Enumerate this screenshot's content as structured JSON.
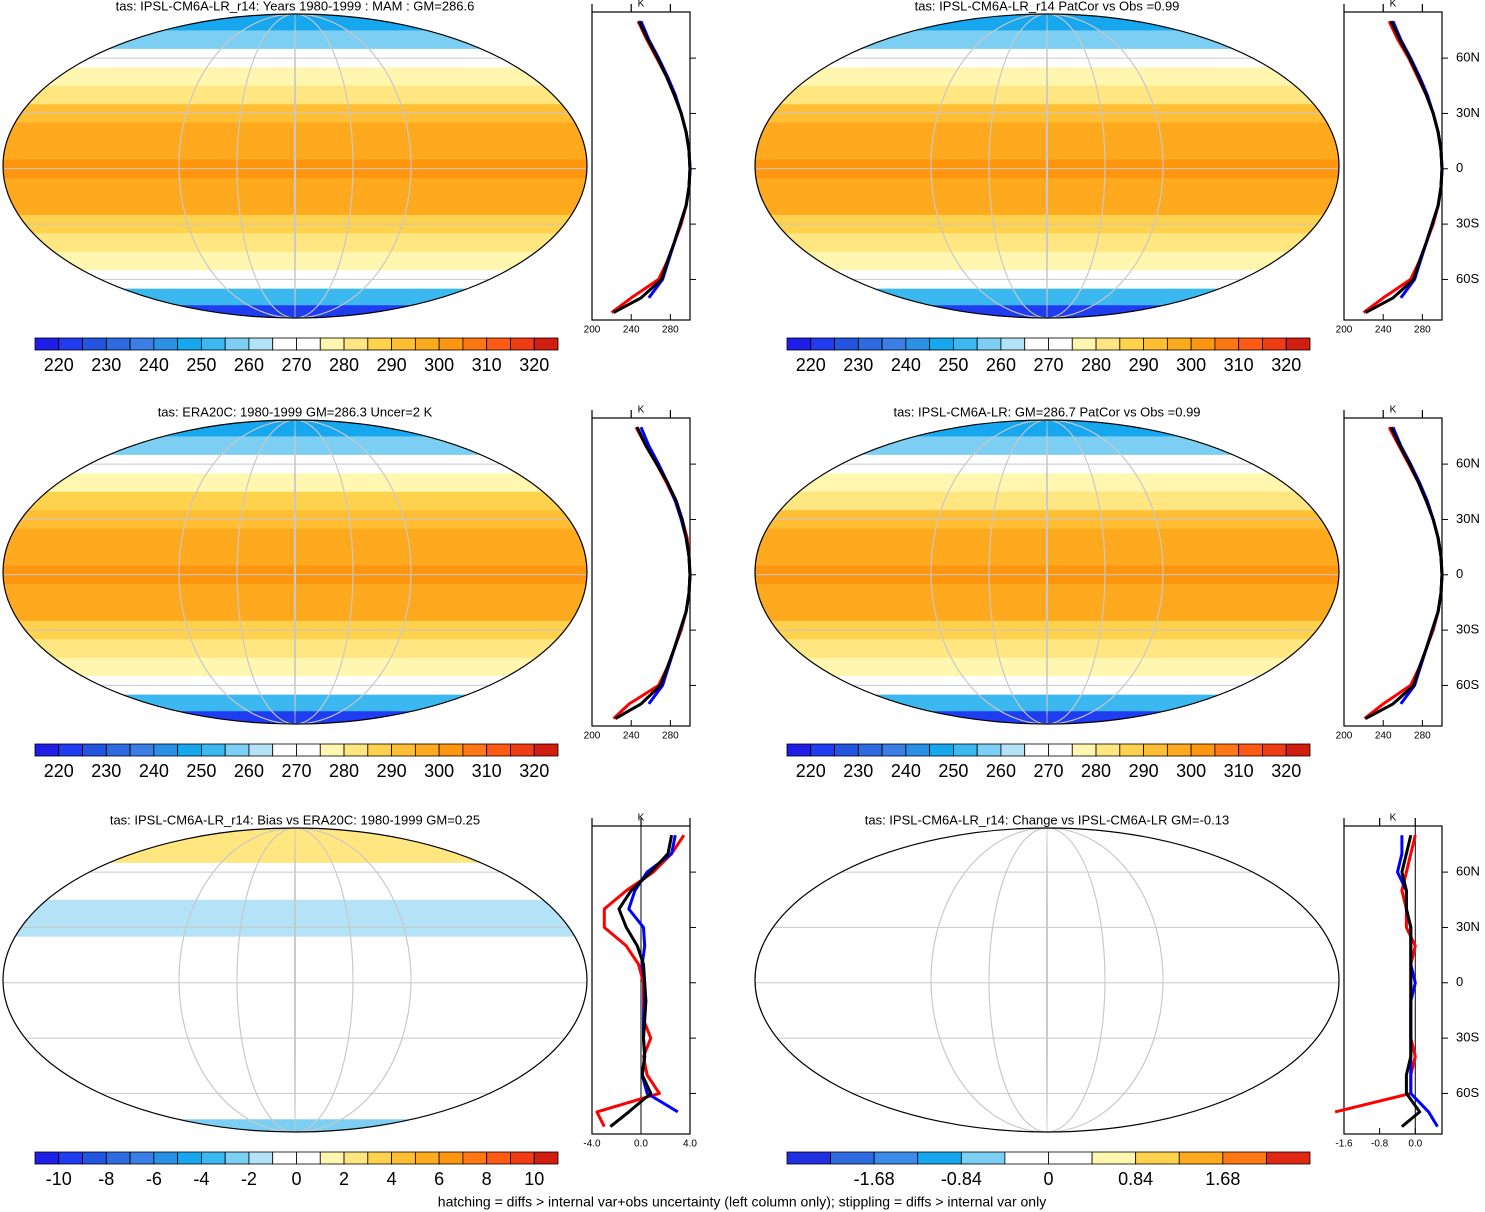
{
  "footnote": "hatching = diffs > internal var+obs uncertainty (left column only); stippling = diffs > internal var only",
  "chart_data": [
    {
      "type": "map",
      "title": "tas: IPSL-CM6A-LR_r14: Years 1980-1999 : MAM : GM=286.6",
      "colorbar": {
        "lim": [
          215,
          325
        ],
        "ticks": [
          220,
          230,
          240,
          250,
          260,
          270,
          280,
          290,
          300,
          310,
          320
        ],
        "colors": [
          "#1e1ee6",
          "#1f3cf0",
          "#2255e0",
          "#2e6ae0",
          "#3a7ee6",
          "#2a90e6",
          "#17a7ef",
          "#3bb8f0",
          "#7ccff2",
          "#b4e2f6",
          "#ffffff",
          "#ffffff",
          "#fff6b0",
          "#ffe680",
          "#ffd24d",
          "#ffbe33",
          "#ffaa1e",
          "#ff9610",
          "#ff7814",
          "#ff5a14",
          "#f03c14",
          "#d21e0f"
        ]
      }
    },
    {
      "type": "line",
      "xlabel": "K",
      "xlim": [
        200,
        300
      ],
      "xticks": [
        200,
        240,
        280
      ],
      "ylim": [
        -82,
        85
      ],
      "yticks": [
        -60,
        -30,
        0,
        30,
        60
      ],
      "ytick_labels": false,
      "zero_line": false,
      "y": [
        80,
        70,
        60,
        50,
        40,
        30,
        20,
        10,
        0,
        -10,
        -20,
        -30,
        -40,
        -50,
        -60,
        -70,
        -78
      ],
      "series": [
        {
          "color": "#ff0000",
          "values": [
            247,
            256,
            266,
            276,
            284,
            291,
            296,
            299,
            300,
            299,
            296,
            291,
            284,
            277,
            268,
            240,
            220
          ]
        },
        {
          "color": "#0000ff",
          "values": [
            250,
            258,
            268,
            277,
            285,
            291,
            296,
            299,
            300,
            299,
            296,
            290,
            284,
            278,
            272,
            258,
            null
          ]
        },
        {
          "color": "#000000",
          "values": [
            248,
            257,
            267,
            276,
            284,
            291,
            296,
            299,
            300,
            299,
            296,
            290,
            284,
            277,
            271,
            250,
            222
          ]
        }
      ]
    },
    {
      "type": "map",
      "title": "tas: IPSL-CM6A-LR_r14 PatCor vs Obs =0.99",
      "colorbar": {
        "lim": [
          215,
          325
        ],
        "ticks": [
          220,
          230,
          240,
          250,
          260,
          270,
          280,
          290,
          300,
          310,
          320
        ],
        "colors": [
          "#1e1ee6",
          "#1f3cf0",
          "#2255e0",
          "#2e6ae0",
          "#3a7ee6",
          "#2a90e6",
          "#17a7ef",
          "#3bb8f0",
          "#7ccff2",
          "#b4e2f6",
          "#ffffff",
          "#ffffff",
          "#fff6b0",
          "#ffe680",
          "#ffd24d",
          "#ffbe33",
          "#ffaa1e",
          "#ff9610",
          "#ff7814",
          "#ff5a14",
          "#f03c14",
          "#d21e0f"
        ]
      }
    },
    {
      "type": "line",
      "xlabel": "K",
      "xlim": [
        200,
        300
      ],
      "xticks": [
        200,
        240,
        280
      ],
      "ylim": [
        -82,
        85
      ],
      "yticks": [
        {
          "value": -60,
          "label": "60S"
        },
        {
          "value": -30,
          "label": "30S"
        },
        0,
        {
          "value": 30,
          "label": "30N"
        },
        {
          "value": 60,
          "label": "60N"
        }
      ],
      "ytick_labels": true,
      "zero_line": false,
      "y": [
        80,
        70,
        60,
        50,
        40,
        30,
        20,
        10,
        0,
        -10,
        -20,
        -30,
        -40,
        -50,
        -60,
        -70,
        -78
      ],
      "series": [
        {
          "color": "#ff0000",
          "values": [
            246,
            255,
            266,
            275,
            284,
            291,
            296,
            299,
            300,
            299,
            296,
            291,
            284,
            277,
            268,
            240,
            220
          ]
        },
        {
          "color": "#0000ff",
          "values": [
            250,
            258,
            268,
            277,
            285,
            291,
            296,
            299,
            300,
            299,
            296,
            290,
            284,
            278,
            272,
            258,
            null
          ]
        },
        {
          "color": "#000000",
          "values": [
            248,
            257,
            267,
            276,
            284,
            291,
            296,
            299,
            300,
            299,
            296,
            290,
            284,
            277,
            271,
            250,
            222
          ]
        }
      ]
    },
    {
      "type": "map",
      "title": "tas: ERA20C: 1980-1999 GM=286.3 Uncer=2 K",
      "colorbar": {
        "lim": [
          215,
          325
        ],
        "ticks": [
          220,
          230,
          240,
          250,
          260,
          270,
          280,
          290,
          300,
          310,
          320
        ],
        "colors": [
          "#1e1ee6",
          "#1f3cf0",
          "#2255e0",
          "#2e6ae0",
          "#3a7ee6",
          "#2a90e6",
          "#17a7ef",
          "#3bb8f0",
          "#7ccff2",
          "#b4e2f6",
          "#ffffff",
          "#ffffff",
          "#fff6b0",
          "#ffe680",
          "#ffd24d",
          "#ffbe33",
          "#ffaa1e",
          "#ff9610",
          "#ff7814",
          "#ff5a14",
          "#f03c14",
          "#d21e0f"
        ]
      }
    },
    {
      "type": "line",
      "xlabel": "K",
      "xlim": [
        200,
        300
      ],
      "xticks": [
        200,
        240,
        280
      ],
      "ylim": [
        -82,
        85
      ],
      "yticks": [
        -60,
        -30,
        0,
        30,
        60
      ],
      "ytick_labels": false,
      "zero_line": false,
      "y": [
        80,
        70,
        60,
        50,
        40,
        30,
        20,
        10,
        0,
        -10,
        -20,
        -30,
        -40,
        -50,
        -60,
        -70,
        -78
      ],
      "series": [
        {
          "color": "#ff0000",
          "values": [
            245,
            255,
            266,
            276,
            285,
            292,
            297,
            299,
            300,
            299,
            296,
            291,
            284,
            277,
            268,
            238,
            222
          ]
        },
        {
          "color": "#0000ff",
          "values": [
            250,
            258,
            268,
            277,
            285,
            291,
            296,
            299,
            300,
            299,
            296,
            290,
            284,
            278,
            272,
            258,
            null
          ]
        },
        {
          "color": "#000000",
          "values": [
            246,
            255,
            266,
            277,
            286,
            292,
            296,
            299,
            300,
            299,
            296,
            290,
            284,
            277,
            270,
            250,
            224
          ]
        }
      ]
    },
    {
      "type": "map",
      "title": "tas: IPSL-CM6A-LR: GM=286.7 PatCor vs Obs =0.99",
      "colorbar": {
        "lim": [
          215,
          325
        ],
        "ticks": [
          220,
          230,
          240,
          250,
          260,
          270,
          280,
          290,
          300,
          310,
          320
        ],
        "colors": [
          "#1e1ee6",
          "#1f3cf0",
          "#2255e0",
          "#2e6ae0",
          "#3a7ee6",
          "#2a90e6",
          "#17a7ef",
          "#3bb8f0",
          "#7ccff2",
          "#b4e2f6",
          "#ffffff",
          "#ffffff",
          "#fff6b0",
          "#ffe680",
          "#ffd24d",
          "#ffbe33",
          "#ffaa1e",
          "#ff9610",
          "#ff7814",
          "#ff5a14",
          "#f03c14",
          "#d21e0f"
        ]
      }
    },
    {
      "type": "line",
      "xlabel": "K",
      "xlim": [
        200,
        300
      ],
      "xticks": [
        200,
        240,
        280
      ],
      "ylim": [
        -82,
        85
      ],
      "yticks": [
        {
          "value": -60,
          "label": "60S"
        },
        {
          "value": -30,
          "label": "30S"
        },
        0,
        {
          "value": 30,
          "label": "30N"
        },
        {
          "value": 60,
          "label": "60N"
        }
      ],
      "ytick_labels": true,
      "zero_line": false,
      "y": [
        80,
        70,
        60,
        50,
        40,
        30,
        20,
        10,
        0,
        -10,
        -20,
        -30,
        -40,
        -50,
        -60,
        -70,
        -78
      ],
      "series": [
        {
          "color": "#ff0000",
          "values": [
            246,
            256,
            266,
            276,
            284,
            291,
            296,
            299,
            300,
            299,
            296,
            291,
            284,
            277,
            268,
            240,
            221
          ]
        },
        {
          "color": "#0000ff",
          "values": [
            250,
            258,
            268,
            277,
            285,
            291,
            296,
            299,
            300,
            299,
            296,
            290,
            284,
            278,
            272,
            258,
            null
          ]
        },
        {
          "color": "#000000",
          "values": [
            248,
            257,
            267,
            276,
            284,
            291,
            296,
            299,
            300,
            299,
            296,
            290,
            284,
            277,
            271,
            250,
            222
          ]
        }
      ]
    },
    {
      "type": "map",
      "title": "tas: IPSL-CM6A-LR_r14: Bias vs ERA20C: 1980-1999 GM=0.25",
      "colorbar": {
        "lim": [
          -11,
          11
        ],
        "ticks": [
          -10,
          -8,
          -6,
          -4,
          -2,
          0,
          2,
          4,
          6,
          8,
          10
        ],
        "colors": [
          "#1e1ee6",
          "#1f3cf0",
          "#2255e0",
          "#2e6ae0",
          "#3a7ee6",
          "#2a90e6",
          "#17a7ef",
          "#3bb8f0",
          "#7ccff2",
          "#b4e2f6",
          "#ffffff",
          "#ffffff",
          "#fff6b0",
          "#ffe680",
          "#ffd24d",
          "#ffbe33",
          "#ffaa1e",
          "#ff9610",
          "#ff7814",
          "#ff5a14",
          "#f03c14",
          "#d21e0f"
        ]
      }
    },
    {
      "type": "line",
      "xlabel": "K",
      "xlim": [
        -4,
        4
      ],
      "xticks": [
        {
          "value": -4,
          "label": "-4.0"
        },
        {
          "value": 0,
          "label": "0.0"
        },
        {
          "value": 4,
          "label": "4.0"
        }
      ],
      "ylim": [
        -82,
        85
      ],
      "yticks": [
        -60,
        -30,
        0,
        30,
        60
      ],
      "ytick_labels": false,
      "zero_line": true,
      "y": [
        80,
        70,
        60,
        50,
        40,
        30,
        20,
        10,
        0,
        -10,
        -20,
        -30,
        -40,
        -50,
        -60,
        -70,
        -78
      ],
      "series": [
        {
          "color": "#ff0000",
          "values": [
            3.5,
            2.5,
            1,
            -1.2,
            -3,
            -3,
            -1.2,
            -0.2,
            0.2,
            0.2,
            0.2,
            0.8,
            0.2,
            0.5,
            1.5,
            -3.6,
            -3
          ]
        },
        {
          "color": "#0000ff",
          "values": [
            2.8,
            2.5,
            0.5,
            -0.5,
            -1,
            0.2,
            0.3,
            0.1,
            0.3,
            0.3,
            0.2,
            0.2,
            0.3,
            0.1,
            0.5,
            3,
            null
          ]
        },
        {
          "color": "#000000",
          "values": [
            2.5,
            2.2,
            0.8,
            -0.8,
            -1.8,
            -1.2,
            -0.3,
            0.2,
            0.3,
            0.4,
            0.3,
            0.2,
            0.3,
            0.1,
            0.8,
            -1,
            -2.5
          ]
        }
      ]
    },
    {
      "type": "map",
      "title": "tas: IPSL-CM6A-LR_r14: Change vs IPSL-CM6A-LR GM=-0.13",
      "colorbar": {
        "lim": [
          -2.52,
          2.52
        ],
        "ticks": [
          -1.68,
          -0.84,
          0,
          0.84,
          1.68
        ],
        "colors": [
          "#2030e0",
          "#2e6ae0",
          "#3a8ae8",
          "#17a7ef",
          "#7ccff2",
          "#ffffff",
          "#ffffff",
          "#fff6b0",
          "#ffd24d",
          "#ffaa1e",
          "#ff7814",
          "#e02814"
        ]
      }
    },
    {
      "type": "line",
      "xlabel": "K",
      "xlim": [
        -1.6,
        0.6
      ],
      "xticks": [
        -1.6,
        -0.8,
        {
          "value": 0,
          "label": "0.0"
        }
      ],
      "ylim": [
        -82,
        85
      ],
      "yticks": [
        {
          "value": -60,
          "label": "60S"
        },
        {
          "value": -30,
          "label": "30S"
        },
        0,
        {
          "value": 30,
          "label": "30N"
        },
        {
          "value": 60,
          "label": "60N"
        }
      ],
      "ytick_labels": true,
      "zero_line": true,
      "y": [
        80,
        70,
        60,
        50,
        40,
        30,
        20,
        10,
        0,
        -10,
        -20,
        -30,
        -40,
        -50,
        -60,
        -70,
        -78
      ],
      "series": [
        {
          "color": "#ff0000",
          "values": [
            0,
            -0.1,
            -0.2,
            -0.3,
            -0.2,
            -0.2,
            0,
            -0.1,
            -0.1,
            -0.1,
            -0.1,
            -0.1,
            0,
            -0.1,
            -0.1,
            -1.8,
            null
          ]
        },
        {
          "color": "#0000ff",
          "values": [
            -0.3,
            -0.3,
            -0.4,
            -0.2,
            -0.2,
            -0.1,
            -0.1,
            -0.1,
            0,
            -0.1,
            -0.1,
            -0.1,
            -0.1,
            -0.1,
            -0.1,
            0.3,
            0.5
          ]
        },
        {
          "color": "#000000",
          "values": [
            -0.1,
            -0.2,
            -0.3,
            -0.2,
            -0.2,
            -0.1,
            -0.1,
            -0.1,
            -0.1,
            -0.1,
            -0.1,
            -0.1,
            -0.1,
            -0.2,
            -0.2,
            0.1,
            -0.3
          ]
        }
      ]
    }
  ]
}
